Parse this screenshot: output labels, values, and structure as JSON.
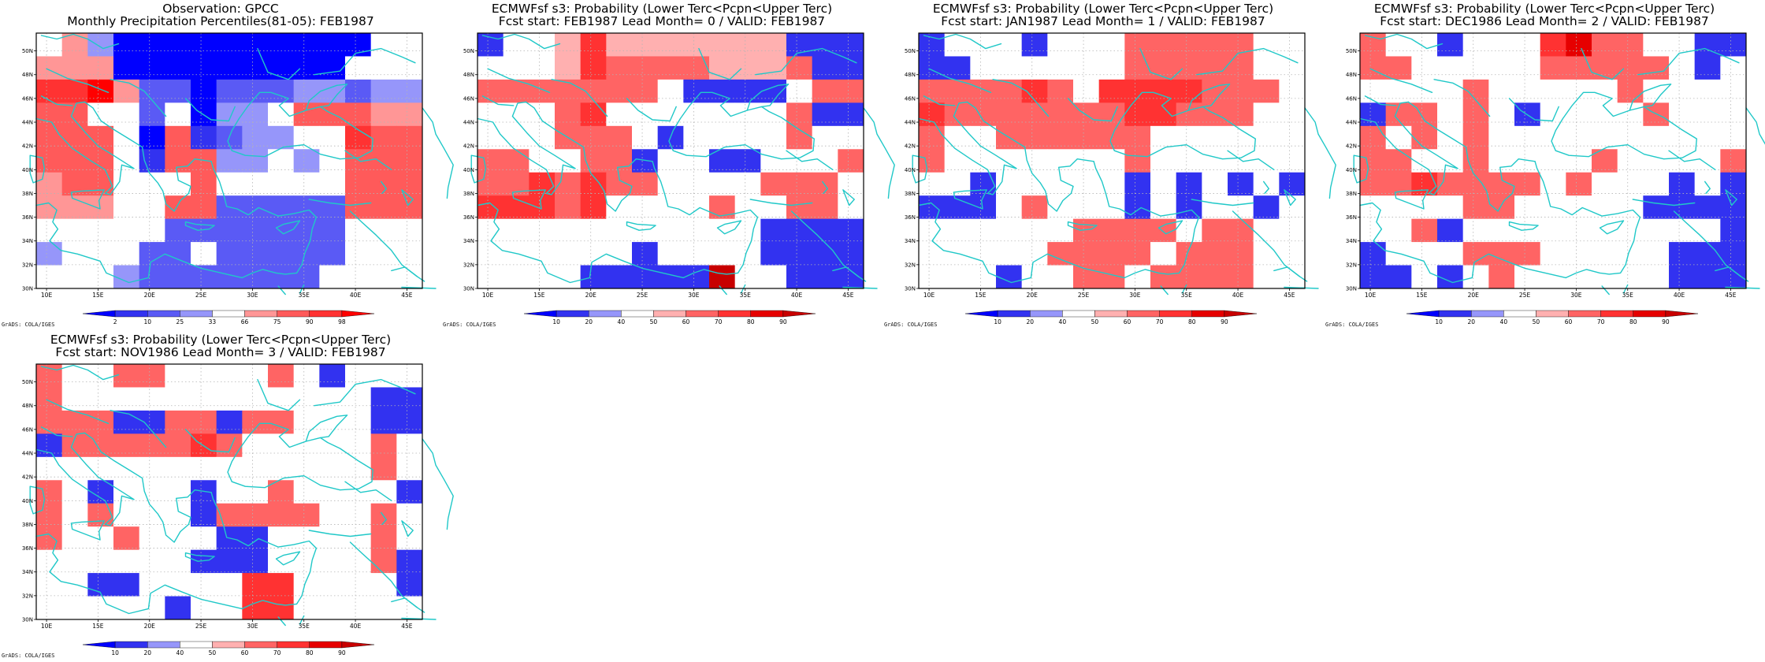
{
  "common": {
    "footer": "GrADS: COLA/IGES",
    "lon_labels": [
      "10E",
      "15E",
      "20E",
      "25E",
      "30E",
      "35E",
      "40E",
      "45E"
    ],
    "lat_labels": [
      "30N",
      "32N",
      "34N",
      "36N",
      "38N",
      "40N",
      "42N",
      "44N",
      "46N",
      "48N",
      "50N"
    ],
    "xlim": [
      9.0,
      46.5
    ],
    "ylim": [
      30.0,
      51.5
    ],
    "coastline_color": "#20c8c8",
    "grid": true
  },
  "colorscales": {
    "obs": {
      "labels": [
        "2",
        "10",
        "25",
        "33",
        "66",
        "75",
        "90",
        "98"
      ],
      "colors": [
        "#0000ff",
        "#3232f0",
        "#5a5af5",
        "#9696fa",
        "#ffffff",
        "#ff9696",
        "#ff5a5a",
        "#ff3232",
        "#ff0000"
      ]
    },
    "prob": {
      "labels": [
        "10",
        "20",
        "40",
        "50",
        "60",
        "70",
        "80",
        "90"
      ],
      "colors": [
        "#0000ff",
        "#3232f0",
        "#9696fa",
        "#ffffff",
        "#ffb0b0",
        "#ff6464",
        "#ff3232",
        "#e60000",
        "#c80000"
      ]
    }
  },
  "panels": [
    {
      "id": "obs",
      "title1": "Observation: GPCC",
      "title2": "Monthly Precipitation Percentiles(81-05): FEB1987",
      "scale": "obs",
      "grid": [
        [
          4,
          5,
          3,
          0,
          0,
          0,
          0,
          0,
          0,
          0,
          0,
          0,
          0,
          4,
          4
        ],
        [
          5,
          5,
          5,
          0,
          0,
          0,
          0,
          0,
          0,
          0,
          0,
          0,
          4,
          4,
          4
        ],
        [
          7,
          7,
          8,
          5,
          2,
          2,
          0,
          2,
          2,
          2,
          3,
          3,
          2,
          3,
          3
        ],
        [
          6,
          6,
          4,
          4,
          2,
          4,
          0,
          3,
          3,
          4,
          6,
          6,
          6,
          5,
          5
        ],
        [
          6,
          6,
          6,
          4,
          0,
          6,
          1,
          2,
          3,
          3,
          4,
          4,
          7,
          6,
          6
        ],
        [
          6,
          6,
          6,
          4,
          1,
          6,
          6,
          3,
          3,
          4,
          3,
          4,
          6,
          6,
          6
        ],
        [
          5,
          6,
          6,
          4,
          4,
          4,
          6,
          4,
          4,
          4,
          4,
          4,
          6,
          6,
          6
        ],
        [
          5,
          5,
          5,
          4,
          4,
          6,
          6,
          2,
          2,
          2,
          2,
          2,
          6,
          6,
          6
        ],
        [
          4,
          4,
          4,
          4,
          4,
          2,
          2,
          2,
          2,
          2,
          2,
          2,
          4,
          4,
          4
        ],
        [
          3,
          4,
          4,
          4,
          2,
          2,
          4,
          2,
          2,
          2,
          2,
          2,
          4,
          4,
          4
        ],
        [
          4,
          4,
          4,
          3,
          2,
          2,
          2,
          2,
          2,
          2,
          2,
          4,
          4,
          4,
          4
        ]
      ]
    },
    {
      "id": "lead0",
      "title1": "ECMWFsf s3: Probability (Lower Terc<Pcpn<Upper Terc)",
      "title2": "Fcst start: FEB1987   Lead Month= 0 / VALID: FEB1987",
      "scale": "prob",
      "grid": [
        [
          1,
          3,
          3,
          4,
          6,
          4,
          4,
          4,
          4,
          4,
          4,
          4,
          1,
          1,
          1
        ],
        [
          3,
          3,
          3,
          4,
          6,
          5,
          5,
          5,
          5,
          4,
          4,
          4,
          5,
          1,
          1
        ],
        [
          5,
          5,
          5,
          5,
          5,
          5,
          5,
          3,
          1,
          1,
          1,
          1,
          3,
          5,
          5
        ],
        [
          3,
          3,
          3,
          5,
          6,
          3,
          3,
          3,
          3,
          3,
          3,
          3,
          5,
          1,
          1
        ],
        [
          3,
          3,
          3,
          5,
          5,
          5,
          3,
          1,
          3,
          3,
          3,
          3,
          5,
          3,
          3
        ],
        [
          5,
          5,
          3,
          3,
          5,
          5,
          1,
          3,
          3,
          1,
          1,
          3,
          3,
          3,
          5
        ],
        [
          5,
          5,
          6,
          5,
          6,
          5,
          5,
          3,
          3,
          3,
          3,
          5,
          5,
          5,
          3
        ],
        [
          6,
          6,
          6,
          5,
          6,
          3,
          3,
          3,
          3,
          5,
          3,
          3,
          5,
          5,
          3
        ],
        [
          3,
          3,
          3,
          3,
          3,
          3,
          3,
          3,
          3,
          3,
          3,
          1,
          1,
          1,
          1
        ],
        [
          3,
          3,
          3,
          3,
          3,
          3,
          1,
          3,
          3,
          3,
          3,
          1,
          1,
          1,
          1
        ],
        [
          3,
          3,
          3,
          3,
          1,
          1,
          1,
          1,
          1,
          8,
          3,
          3,
          1,
          1,
          1
        ]
      ]
    },
    {
      "id": "lead1",
      "title1": "ECMWFsf s3: Probability (Lower Terc<Pcpn<Upper Terc)",
      "title2": "Fcst start: JAN1987   Lead Month= 1 / VALID: FEB1987",
      "scale": "prob",
      "grid": [
        [
          1,
          3,
          3,
          3,
          1,
          3,
          3,
          3,
          5,
          5,
          5,
          5,
          5,
          3,
          3
        ],
        [
          1,
          1,
          3,
          3,
          3,
          3,
          3,
          3,
          5,
          5,
          5,
          5,
          5,
          3,
          3
        ],
        [
          5,
          5,
          5,
          5,
          6,
          5,
          3,
          6,
          6,
          6,
          6,
          5,
          5,
          5,
          3
        ],
        [
          6,
          5,
          5,
          5,
          5,
          5,
          5,
          5,
          6,
          6,
          5,
          5,
          5,
          3,
          3
        ],
        [
          5,
          3,
          3,
          5,
          5,
          5,
          5,
          5,
          5,
          3,
          3,
          3,
          3,
          3,
          3
        ],
        [
          5,
          3,
          3,
          3,
          3,
          3,
          3,
          3,
          5,
          3,
          3,
          3,
          3,
          3,
          3
        ],
        [
          3,
          3,
          1,
          3,
          3,
          3,
          3,
          3,
          1,
          3,
          1,
          3,
          1,
          3,
          1
        ],
        [
          1,
          1,
          1,
          3,
          5,
          3,
          3,
          3,
          1,
          3,
          1,
          3,
          3,
          1,
          3
        ],
        [
          3,
          3,
          3,
          3,
          3,
          3,
          5,
          5,
          5,
          5,
          3,
          5,
          5,
          3,
          3
        ],
        [
          3,
          3,
          3,
          3,
          3,
          5,
          5,
          5,
          5,
          3,
          5,
          5,
          5,
          3,
          3
        ],
        [
          3,
          3,
          3,
          1,
          3,
          3,
          5,
          5,
          3,
          5,
          5,
          5,
          5,
          3,
          3
        ]
      ]
    },
    {
      "id": "lead2",
      "title1": "ECMWFsf s3: Probability (Lower Terc<Pcpn<Upper Terc)",
      "title2": "Fcst start: DEC1986   Lead Month= 2 / VALID: FEB1987",
      "scale": "prob",
      "grid": [
        [
          5,
          3,
          3,
          1,
          3,
          3,
          3,
          6,
          7,
          5,
          5,
          3,
          3,
          1,
          1
        ],
        [
          5,
          5,
          3,
          3,
          3,
          3,
          3,
          5,
          5,
          5,
          5,
          5,
          3,
          1,
          3
        ],
        [
          3,
          3,
          3,
          3,
          5,
          3,
          3,
          3,
          3,
          3,
          5,
          3,
          3,
          3,
          3
        ],
        [
          1,
          5,
          5,
          3,
          5,
          3,
          1,
          3,
          3,
          3,
          3,
          5,
          3,
          3,
          3
        ],
        [
          5,
          3,
          5,
          3,
          5,
          3,
          3,
          3,
          3,
          3,
          3,
          3,
          3,
          3,
          3
        ],
        [
          5,
          5,
          3,
          3,
          5,
          3,
          3,
          3,
          3,
          5,
          3,
          3,
          3,
          3,
          5
        ],
        [
          5,
          5,
          6,
          5,
          5,
          5,
          5,
          3,
          5,
          3,
          3,
          3,
          1,
          3,
          1
        ],
        [
          3,
          3,
          3,
          3,
          5,
          5,
          3,
          3,
          3,
          3,
          3,
          1,
          1,
          1,
          1
        ],
        [
          3,
          3,
          5,
          1,
          3,
          3,
          3,
          3,
          3,
          3,
          3,
          3,
          3,
          3,
          1
        ],
        [
          1,
          3,
          3,
          3,
          5,
          5,
          5,
          3,
          3,
          3,
          3,
          3,
          1,
          1,
          1
        ],
        [
          1,
          1,
          3,
          1,
          3,
          5,
          3,
          3,
          3,
          3,
          3,
          3,
          1,
          1,
          1
        ]
      ]
    },
    {
      "id": "lead3",
      "title1": "ECMWFsf s3: Probability (Lower Terc<Pcpn<Upper Terc)",
      "title2": "Fcst start: NOV1986   Lead Month= 3 / VALID: FEB1987",
      "scale": "prob",
      "grid": [
        [
          5,
          3,
          3,
          5,
          5,
          3,
          3,
          3,
          3,
          5,
          3,
          1,
          3,
          3,
          3
        ],
        [
          5,
          3,
          3,
          3,
          3,
          3,
          3,
          3,
          3,
          3,
          3,
          3,
          3,
          1,
          1
        ],
        [
          5,
          5,
          5,
          1,
          1,
          5,
          5,
          1,
          5,
          5,
          3,
          3,
          3,
          1,
          1
        ],
        [
          1,
          5,
          5,
          5,
          5,
          5,
          6,
          5,
          3,
          3,
          3,
          3,
          3,
          5,
          3
        ],
        [
          3,
          3,
          3,
          3,
          3,
          3,
          3,
          3,
          3,
          3,
          3,
          3,
          3,
          5,
          3
        ],
        [
          5,
          3,
          1,
          3,
          3,
          3,
          1,
          3,
          3,
          5,
          3,
          3,
          3,
          3,
          1
        ],
        [
          5,
          3,
          5,
          3,
          3,
          3,
          1,
          5,
          5,
          5,
          5,
          3,
          3,
          5,
          3
        ],
        [
          5,
          3,
          3,
          5,
          3,
          3,
          3,
          1,
          1,
          3,
          3,
          3,
          3,
          5,
          3
        ],
        [
          3,
          3,
          3,
          3,
          3,
          3,
          1,
          1,
          1,
          3,
          3,
          3,
          3,
          5,
          1
        ],
        [
          3,
          3,
          1,
          1,
          3,
          3,
          3,
          3,
          6,
          6,
          3,
          3,
          3,
          3,
          1
        ],
        [
          3,
          3,
          3,
          3,
          3,
          1,
          3,
          3,
          6,
          6,
          3,
          3,
          3,
          3,
          3
        ]
      ]
    }
  ]
}
